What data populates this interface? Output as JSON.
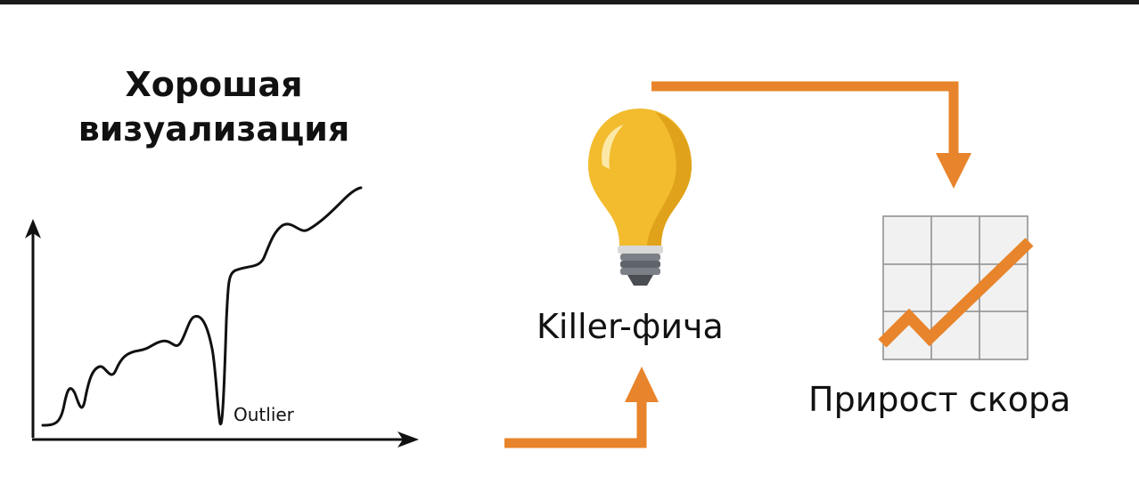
{
  "title": {
    "line1": "Хорошая",
    "line2": "визуализация"
  },
  "plot": {
    "annotation": "Outlier"
  },
  "feature": {
    "label": "Killer-фича",
    "icon": "lightbulb-icon"
  },
  "result": {
    "label": "Прирост скора",
    "icon": "growth-chart-icon"
  },
  "colors": {
    "arrow": "#E8842B",
    "bulb": "#F2BC2E",
    "bulb_shade": "#E0A21A",
    "grid_fill": "#F1F1F1",
    "grid_line": "#8C8C8C",
    "text": "#111111"
  }
}
